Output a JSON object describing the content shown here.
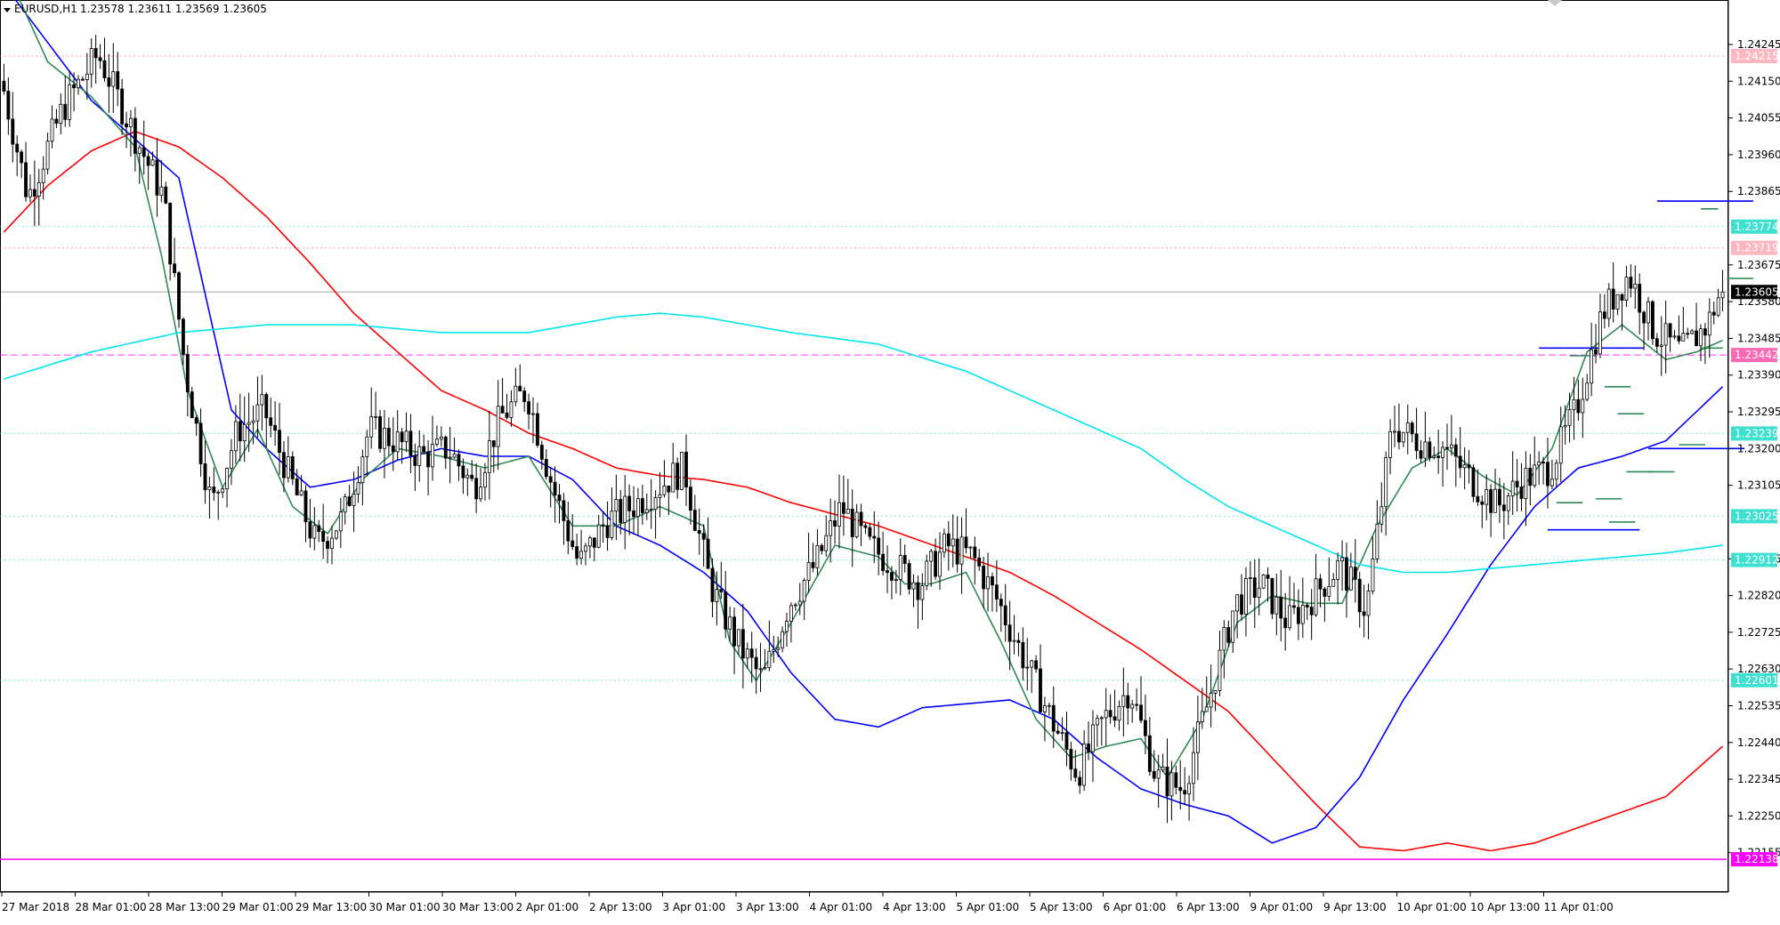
{
  "header": {
    "symbol": "EURUSD,H1",
    "ohlc": "1.23578 1.23611 1.23569 1.23605"
  },
  "colors": {
    "bull_body": "#ffffff",
    "bear_body": "#000000",
    "wick": "#000000",
    "ma_red": "#ff0000",
    "ma_blue": "#0000ff",
    "ma_green": "#2e8b57",
    "ma_cyan": "#00e5ee",
    "level_teal": "#40e0d0",
    "level_pink": "#ff69b4",
    "level_magenta": "#ff00ff",
    "current_price_tag": "#000000"
  },
  "chart_data": {
    "type": "candlestick",
    "title": "EURUSD,H1",
    "ylim": [
      1.2206,
      1.2436
    ],
    "y_ticks": [
      "1.24245",
      "1.24150",
      "1.24055",
      "1.23960",
      "1.23865",
      "1.23675",
      "1.23580",
      "1.23485",
      "1.23390",
      "1.23295",
      "1.23200",
      "1.23105",
      "1.22915",
      "1.22820",
      "1.22725",
      "1.22630",
      "1.22535",
      "1.22440",
      "1.22345",
      "1.22250",
      "1.22155"
    ],
    "x_labels": [
      "27 Mar 2018",
      "28 Mar 01:00",
      "28 Mar 13:00",
      "29 Mar 01:00",
      "29 Mar 13:00",
      "30 Mar 01:00",
      "30 Mar 13:00",
      "2 Apr 01:00",
      "2 Apr 13:00",
      "3 Apr 01:00",
      "3 Apr 13:00",
      "4 Apr 01:00",
      "4 Apr 13:00",
      "5 Apr 01:00",
      "5 Apr 13:00",
      "6 Apr 01:00",
      "6 Apr 13:00",
      "9 Apr 01:00",
      "9 Apr 13:00",
      "10 Apr 01:00",
      "10 Apr 13:00",
      "11 Apr 01:00"
    ],
    "candles_anchor_path": [
      [
        0,
        1.2415
      ],
      [
        6,
        1.2385
      ],
      [
        14,
        1.2408
      ],
      [
        22,
        1.2422
      ],
      [
        30,
        1.2402
      ],
      [
        37,
        1.2385
      ],
      [
        42,
        1.234
      ],
      [
        48,
        1.2305
      ],
      [
        54,
        1.2325
      ],
      [
        60,
        1.233
      ],
      [
        66,
        1.2312
      ],
      [
        72,
        1.2295
      ],
      [
        78,
        1.2302
      ],
      [
        84,
        1.2325
      ],
      [
        90,
        1.2322
      ],
      [
        96,
        1.2318
      ],
      [
        102,
        1.232
      ],
      [
        108,
        1.231
      ],
      [
        114,
        1.2328
      ],
      [
        120,
        1.2335
      ],
      [
        126,
        1.231
      ],
      [
        132,
        1.229
      ],
      [
        138,
        1.2301
      ],
      [
        144,
        1.2305
      ],
      [
        150,
        1.231
      ],
      [
        156,
        1.2315
      ],
      [
        162,
        1.2285
      ],
      [
        168,
        1.227
      ],
      [
        174,
        1.226
      ],
      [
        180,
        1.228
      ],
      [
        186,
        1.229
      ],
      [
        192,
        1.2305
      ],
      [
        198,
        1.2295
      ],
      [
        204,
        1.229
      ],
      [
        210,
        1.2285
      ],
      [
        216,
        1.2295
      ],
      [
        222,
        1.2292
      ],
      [
        228,
        1.228
      ],
      [
        234,
        1.2265
      ],
      [
        240,
        1.225
      ],
      [
        246,
        1.2236
      ],
      [
        252,
        1.225
      ],
      [
        258,
        1.2258
      ],
      [
        264,
        1.2235
      ],
      [
        270,
        1.2232
      ],
      [
        276,
        1.2255
      ],
      [
        282,
        1.228
      ],
      [
        288,
        1.2285
      ],
      [
        294,
        1.2275
      ],
      [
        300,
        1.2282
      ],
      [
        306,
        1.229
      ],
      [
        312,
        1.2278
      ],
      [
        318,
        1.2326
      ],
      [
        324,
        1.2322
      ],
      [
        330,
        1.232
      ],
      [
        336,
        1.2312
      ],
      [
        342,
        1.2305
      ],
      [
        348,
        1.2312
      ],
      [
        354,
        1.2315
      ],
      [
        360,
        1.233
      ],
      [
        366,
        1.2355
      ],
      [
        372,
        1.2365
      ],
      [
        378,
        1.235
      ],
      [
        384,
        1.2345
      ],
      [
        390,
        1.2352
      ],
      [
        393,
        1.23605
      ]
    ],
    "moving_averages": [
      {
        "color": "#ff0000",
        "path": [
          [
            0,
            1.2376
          ],
          [
            10,
            1.2388
          ],
          [
            20,
            1.2397
          ],
          [
            30,
            1.2402
          ],
          [
            40,
            1.2398
          ],
          [
            50,
            1.239
          ],
          [
            60,
            1.238
          ],
          [
            70,
            1.2368
          ],
          [
            80,
            1.2355
          ],
          [
            90,
            1.2345
          ],
          [
            100,
            1.2335
          ],
          [
            110,
            1.233
          ],
          [
            120,
            1.2324
          ],
          [
            130,
            1.232
          ],
          [
            140,
            1.2315
          ],
          [
            150,
            1.2313
          ],
          [
            160,
            1.2312
          ],
          [
            170,
            1.231
          ],
          [
            180,
            1.2306
          ],
          [
            190,
            1.2303
          ],
          [
            200,
            1.23
          ],
          [
            210,
            1.2296
          ],
          [
            220,
            1.2292
          ],
          [
            230,
            1.2288
          ],
          [
            240,
            1.2282
          ],
          [
            250,
            1.2275
          ],
          [
            260,
            1.2268
          ],
          [
            270,
            1.226
          ],
          [
            280,
            1.2252
          ],
          [
            290,
            1.224
          ],
          [
            300,
            1.2228
          ],
          [
            310,
            1.2217
          ],
          [
            320,
            1.2216
          ],
          [
            330,
            1.2218
          ],
          [
            340,
            1.2216
          ],
          [
            350,
            1.2218
          ],
          [
            360,
            1.2222
          ],
          [
            370,
            1.2226
          ],
          [
            380,
            1.223
          ],
          [
            393,
            1.2243
          ]
        ]
      },
      {
        "color": "#0000ff",
        "path": [
          [
            0,
            1.244
          ],
          [
            10,
            1.2425
          ],
          [
            20,
            1.241
          ],
          [
            30,
            1.24
          ],
          [
            40,
            1.239
          ],
          [
            46,
            1.236
          ],
          [
            52,
            1.233
          ],
          [
            60,
            1.232
          ],
          [
            70,
            1.231
          ],
          [
            80,
            1.2312
          ],
          [
            90,
            1.2317
          ],
          [
            100,
            1.232
          ],
          [
            110,
            1.2318
          ],
          [
            120,
            1.2318
          ],
          [
            130,
            1.2312
          ],
          [
            140,
            1.23
          ],
          [
            150,
            1.2295
          ],
          [
            160,
            1.2288
          ],
          [
            170,
            1.2278
          ],
          [
            180,
            1.2262
          ],
          [
            190,
            1.225
          ],
          [
            200,
            1.2248
          ],
          [
            210,
            1.2253
          ],
          [
            220,
            1.2254
          ],
          [
            230,
            1.2255
          ],
          [
            240,
            1.225
          ],
          [
            250,
            1.224
          ],
          [
            260,
            1.2232
          ],
          [
            270,
            1.2228
          ],
          [
            280,
            1.2225
          ],
          [
            290,
            1.2218
          ],
          [
            300,
            1.2222
          ],
          [
            310,
            1.2235
          ],
          [
            320,
            1.2255
          ],
          [
            330,
            1.2272
          ],
          [
            340,
            1.229
          ],
          [
            350,
            1.2305
          ],
          [
            360,
            1.2315
          ],
          [
            370,
            1.2318
          ],
          [
            380,
            1.2322
          ],
          [
            393,
            1.2336
          ]
        ]
      },
      {
        "color": "#2e8b57",
        "path": [
          [
            0,
            1.2445
          ],
          [
            10,
            1.242
          ],
          [
            20,
            1.2411
          ],
          [
            30,
            1.2398
          ],
          [
            36,
            1.237
          ],
          [
            42,
            1.2335
          ],
          [
            50,
            1.231
          ],
          [
            58,
            1.2325
          ],
          [
            66,
            1.2305
          ],
          [
            74,
            1.2298
          ],
          [
            82,
            1.2312
          ],
          [
            90,
            1.232
          ],
          [
            100,
            1.2318
          ],
          [
            110,
            1.2315
          ],
          [
            120,
            1.2318
          ],
          [
            130,
            1.23
          ],
          [
            140,
            1.23
          ],
          [
            150,
            1.2305
          ],
          [
            160,
            1.23
          ],
          [
            166,
            1.227
          ],
          [
            172,
            1.226
          ],
          [
            180,
            1.2275
          ],
          [
            190,
            1.2295
          ],
          [
            200,
            1.2292
          ],
          [
            206,
            1.2285
          ],
          [
            212,
            1.2285
          ],
          [
            220,
            1.2288
          ],
          [
            228,
            1.227
          ],
          [
            236,
            1.225
          ],
          [
            244,
            1.224
          ],
          [
            252,
            1.2243
          ],
          [
            260,
            1.2245
          ],
          [
            266,
            1.2235
          ],
          [
            274,
            1.225
          ],
          [
            282,
            1.2275
          ],
          [
            290,
            1.2282
          ],
          [
            298,
            1.228
          ],
          [
            306,
            1.228
          ],
          [
            314,
            1.23
          ],
          [
            322,
            1.2315
          ],
          [
            330,
            1.232
          ],
          [
            338,
            1.2313
          ],
          [
            346,
            1.2308
          ],
          [
            354,
            1.232
          ],
          [
            362,
            1.2345
          ],
          [
            370,
            1.2352
          ],
          [
            380,
            1.2343
          ],
          [
            387,
            1.2345
          ],
          [
            393,
            1.2348
          ]
        ]
      },
      {
        "color": "#00e5ee",
        "path": [
          [
            0,
            1.2338
          ],
          [
            20,
            1.2345
          ],
          [
            40,
            1.235
          ],
          [
            60,
            1.2352
          ],
          [
            80,
            1.2352
          ],
          [
            100,
            1.235
          ],
          [
            120,
            1.235
          ],
          [
            140,
            1.2354
          ],
          [
            150,
            1.2355
          ],
          [
            160,
            1.2354
          ],
          [
            180,
            1.235
          ],
          [
            200,
            1.2347
          ],
          [
            220,
            1.234
          ],
          [
            240,
            1.233
          ],
          [
            260,
            1.232
          ],
          [
            270,
            1.2312
          ],
          [
            280,
            1.2305
          ],
          [
            290,
            1.23
          ],
          [
            300,
            1.2295
          ],
          [
            310,
            1.229
          ],
          [
            320,
            1.2288
          ],
          [
            330,
            1.2288
          ],
          [
            340,
            1.2289
          ],
          [
            360,
            1.2291
          ],
          [
            380,
            1.2293
          ],
          [
            393,
            1.2295
          ]
        ]
      }
    ],
    "horizontal_levels": [
      {
        "label": "1.24215",
        "color": "#ff69b4",
        "bg": "#ffb6c1",
        "style": "dotted",
        "value": 1.24215
      },
      {
        "label": "1.23774",
        "color": "#40e0d0",
        "bg": "#40e0d0",
        "style": "dotted",
        "value": 1.23774
      },
      {
        "label": "1.23719",
        "color": "#ff69b4",
        "bg": "#ffb6c1",
        "style": "dotted",
        "value": 1.23719
      },
      {
        "label": "1.23605",
        "color": "#000000",
        "bg": "#000000",
        "style": "solid-light",
        "value": 1.23605
      },
      {
        "label": "1.23442",
        "color": "#ff00ff",
        "bg": "#ff69b4",
        "style": "dashed",
        "value": 1.23442
      },
      {
        "label": "1.23239",
        "color": "#40e0d0",
        "bg": "#40e0d0",
        "style": "dotted",
        "value": 1.23239
      },
      {
        "label": "1.23025",
        "color": "#40e0d0",
        "bg": "#40e0d0",
        "style": "dotted",
        "value": 1.23025
      },
      {
        "label": "1.22912",
        "color": "#40e0d0",
        "bg": "#40e0d0",
        "style": "dotted",
        "value": 1.22912
      },
      {
        "label": "1.22601",
        "color": "#40e0d0",
        "bg": "#40e0d0",
        "style": "dotted",
        "value": 1.22601
      },
      {
        "label": "1.22138",
        "color": "#ff00ff",
        "bg": "#ff00ff",
        "style": "solid",
        "value": 1.22138
      }
    ],
    "segments": [
      {
        "color": "#0000ff",
        "x0": 378,
        "x1": 400,
        "y": 1.2384
      },
      {
        "color": "#2e8b57",
        "x0": 388,
        "x1": 392,
        "y": 1.2382
      },
      {
        "color": "#0000ff",
        "x0": 351,
        "x1": 375,
        "y": 1.2346
      },
      {
        "color": "#2e8b57",
        "x0": 358,
        "x1": 364,
        "y": 1.2344
      },
      {
        "color": "#0000ff",
        "x0": 376,
        "x1": 398,
        "y": 1.232
      },
      {
        "color": "#0000ff",
        "x0": 353,
        "x1": 374,
        "y": 1.2299
      },
      {
        "color": "#2e8b57",
        "x0": 366,
        "x1": 372,
        "y": 1.2336
      },
      {
        "color": "#2e8b57",
        "x0": 369,
        "x1": 375,
        "y": 1.2329
      },
      {
        "color": "#2e8b57",
        "x0": 383,
        "x1": 389,
        "y": 1.2321
      },
      {
        "color": "#2e8b57",
        "x0": 371,
        "x1": 377,
        "y": 1.2314
      },
      {
        "color": "#2e8b57",
        "x0": 376,
        "x1": 382,
        "y": 1.2314
      },
      {
        "color": "#2e8b57",
        "x0": 355,
        "x1": 361,
        "y": 1.2306
      },
      {
        "color": "#2e8b57",
        "x0": 364,
        "x1": 370,
        "y": 1.2307
      },
      {
        "color": "#2e8b57",
        "x0": 367,
        "x1": 373,
        "y": 1.2301
      },
      {
        "color": "#2e8b57",
        "x0": 388,
        "x1": 393,
        "y": 1.2346
      },
      {
        "color": "#2e8b57",
        "x0": 394,
        "x1": 400,
        "y": 1.2364
      }
    ]
  }
}
